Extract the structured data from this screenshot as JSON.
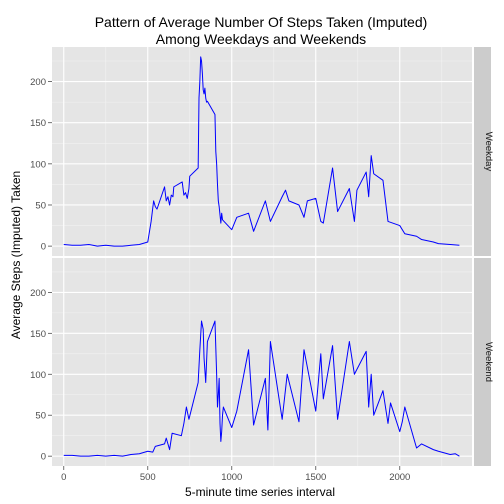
{
  "chart_data": {
    "type": "line",
    "title": "Pattern of Average Number Of Steps Taken (Imputed)",
    "subtitle": "Among Weekdays and Weekends",
    "xlabel": "5-minute time series interval",
    "ylabel": "Average Steps (Imputed) Taken",
    "xlim": [
      -70,
      2430
    ],
    "ylim": [
      -12,
      242
    ],
    "xticks": [
      0,
      500,
      1000,
      1500,
      2000
    ],
    "yticks": [
      0,
      50,
      100,
      150,
      200
    ],
    "grid": true,
    "line_color": "#0000ff",
    "panel_bg": "#e5e5e5",
    "strip_bg": "#cccccc",
    "facets": [
      {
        "label": "Weekday",
        "x": [
          0,
          50,
          100,
          150,
          200,
          250,
          300,
          350,
          400,
          450,
          500,
          520,
          535,
          545,
          555,
          600,
          610,
          620,
          630,
          640,
          650,
          655,
          705,
          715,
          725,
          735,
          745,
          750,
          800,
          805,
          810,
          815,
          820,
          825,
          830,
          835,
          840,
          845,
          850,
          855,
          900,
          905,
          910,
          915,
          920,
          925,
          930,
          935,
          940,
          945,
          1000,
          1010,
          1030,
          1100,
          1130,
          1200,
          1230,
          1300,
          1320,
          1340,
          1400,
          1430,
          1450,
          1500,
          1530,
          1545,
          1600,
          1630,
          1700,
          1730,
          1745,
          1800,
          1815,
          1830,
          1845,
          1900,
          1930,
          2000,
          2030,
          2100,
          2130,
          2200,
          2230,
          2300,
          2355
        ],
        "y": [
          2,
          1,
          1,
          2,
          0,
          1,
          0,
          0,
          1,
          2,
          5,
          30,
          55,
          48,
          45,
          72,
          55,
          60,
          50,
          62,
          60,
          72,
          78,
          62,
          65,
          58,
          70,
          85,
          95,
          180,
          200,
          230,
          225,
          210,
          190,
          185,
          192,
          180,
          175,
          176,
          160,
          115,
          100,
          75,
          55,
          48,
          38,
          28,
          40,
          32,
          20,
          25,
          35,
          40,
          18,
          55,
          30,
          60,
          68,
          55,
          50,
          35,
          55,
          58,
          30,
          28,
          95,
          42,
          70,
          30,
          68,
          90,
          60,
          110,
          88,
          80,
          30,
          25,
          15,
          12,
          8,
          5,
          3,
          2,
          1
        ]
      },
      {
        "label": "Weekend",
        "x": [
          0,
          50,
          100,
          150,
          200,
          250,
          300,
          350,
          400,
          450,
          500,
          530,
          545,
          600,
          610,
          630,
          645,
          700,
          715,
          730,
          745,
          800,
          810,
          820,
          830,
          835,
          845,
          855,
          900,
          910,
          915,
          920,
          925,
          930,
          935,
          940,
          945,
          950,
          1000,
          1015,
          1030,
          1100,
          1130,
          1200,
          1215,
          1230,
          1300,
          1330,
          1400,
          1430,
          1500,
          1530,
          1545,
          1600,
          1630,
          1700,
          1730,
          1800,
          1815,
          1830,
          1845,
          1900,
          1930,
          1945,
          2000,
          2015,
          2030,
          2100,
          2130,
          2200,
          2230,
          2300,
          2330,
          2355
        ],
        "y": [
          1,
          1,
          0,
          0,
          1,
          0,
          1,
          0,
          2,
          3,
          6,
          5,
          12,
          15,
          22,
          8,
          28,
          25,
          40,
          60,
          45,
          90,
          130,
          165,
          155,
          120,
          90,
          140,
          165,
          100,
          60,
          75,
          95,
          40,
          18,
          30,
          50,
          60,
          35,
          45,
          55,
          130,
          38,
          95,
          32,
          140,
          45,
          100,
          42,
          130,
          55,
          125,
          70,
          135,
          45,
          140,
          100,
          128,
          60,
          100,
          50,
          80,
          40,
          65,
          30,
          42,
          60,
          10,
          15,
          8,
          6,
          2,
          3,
          0
        ]
      }
    ]
  }
}
